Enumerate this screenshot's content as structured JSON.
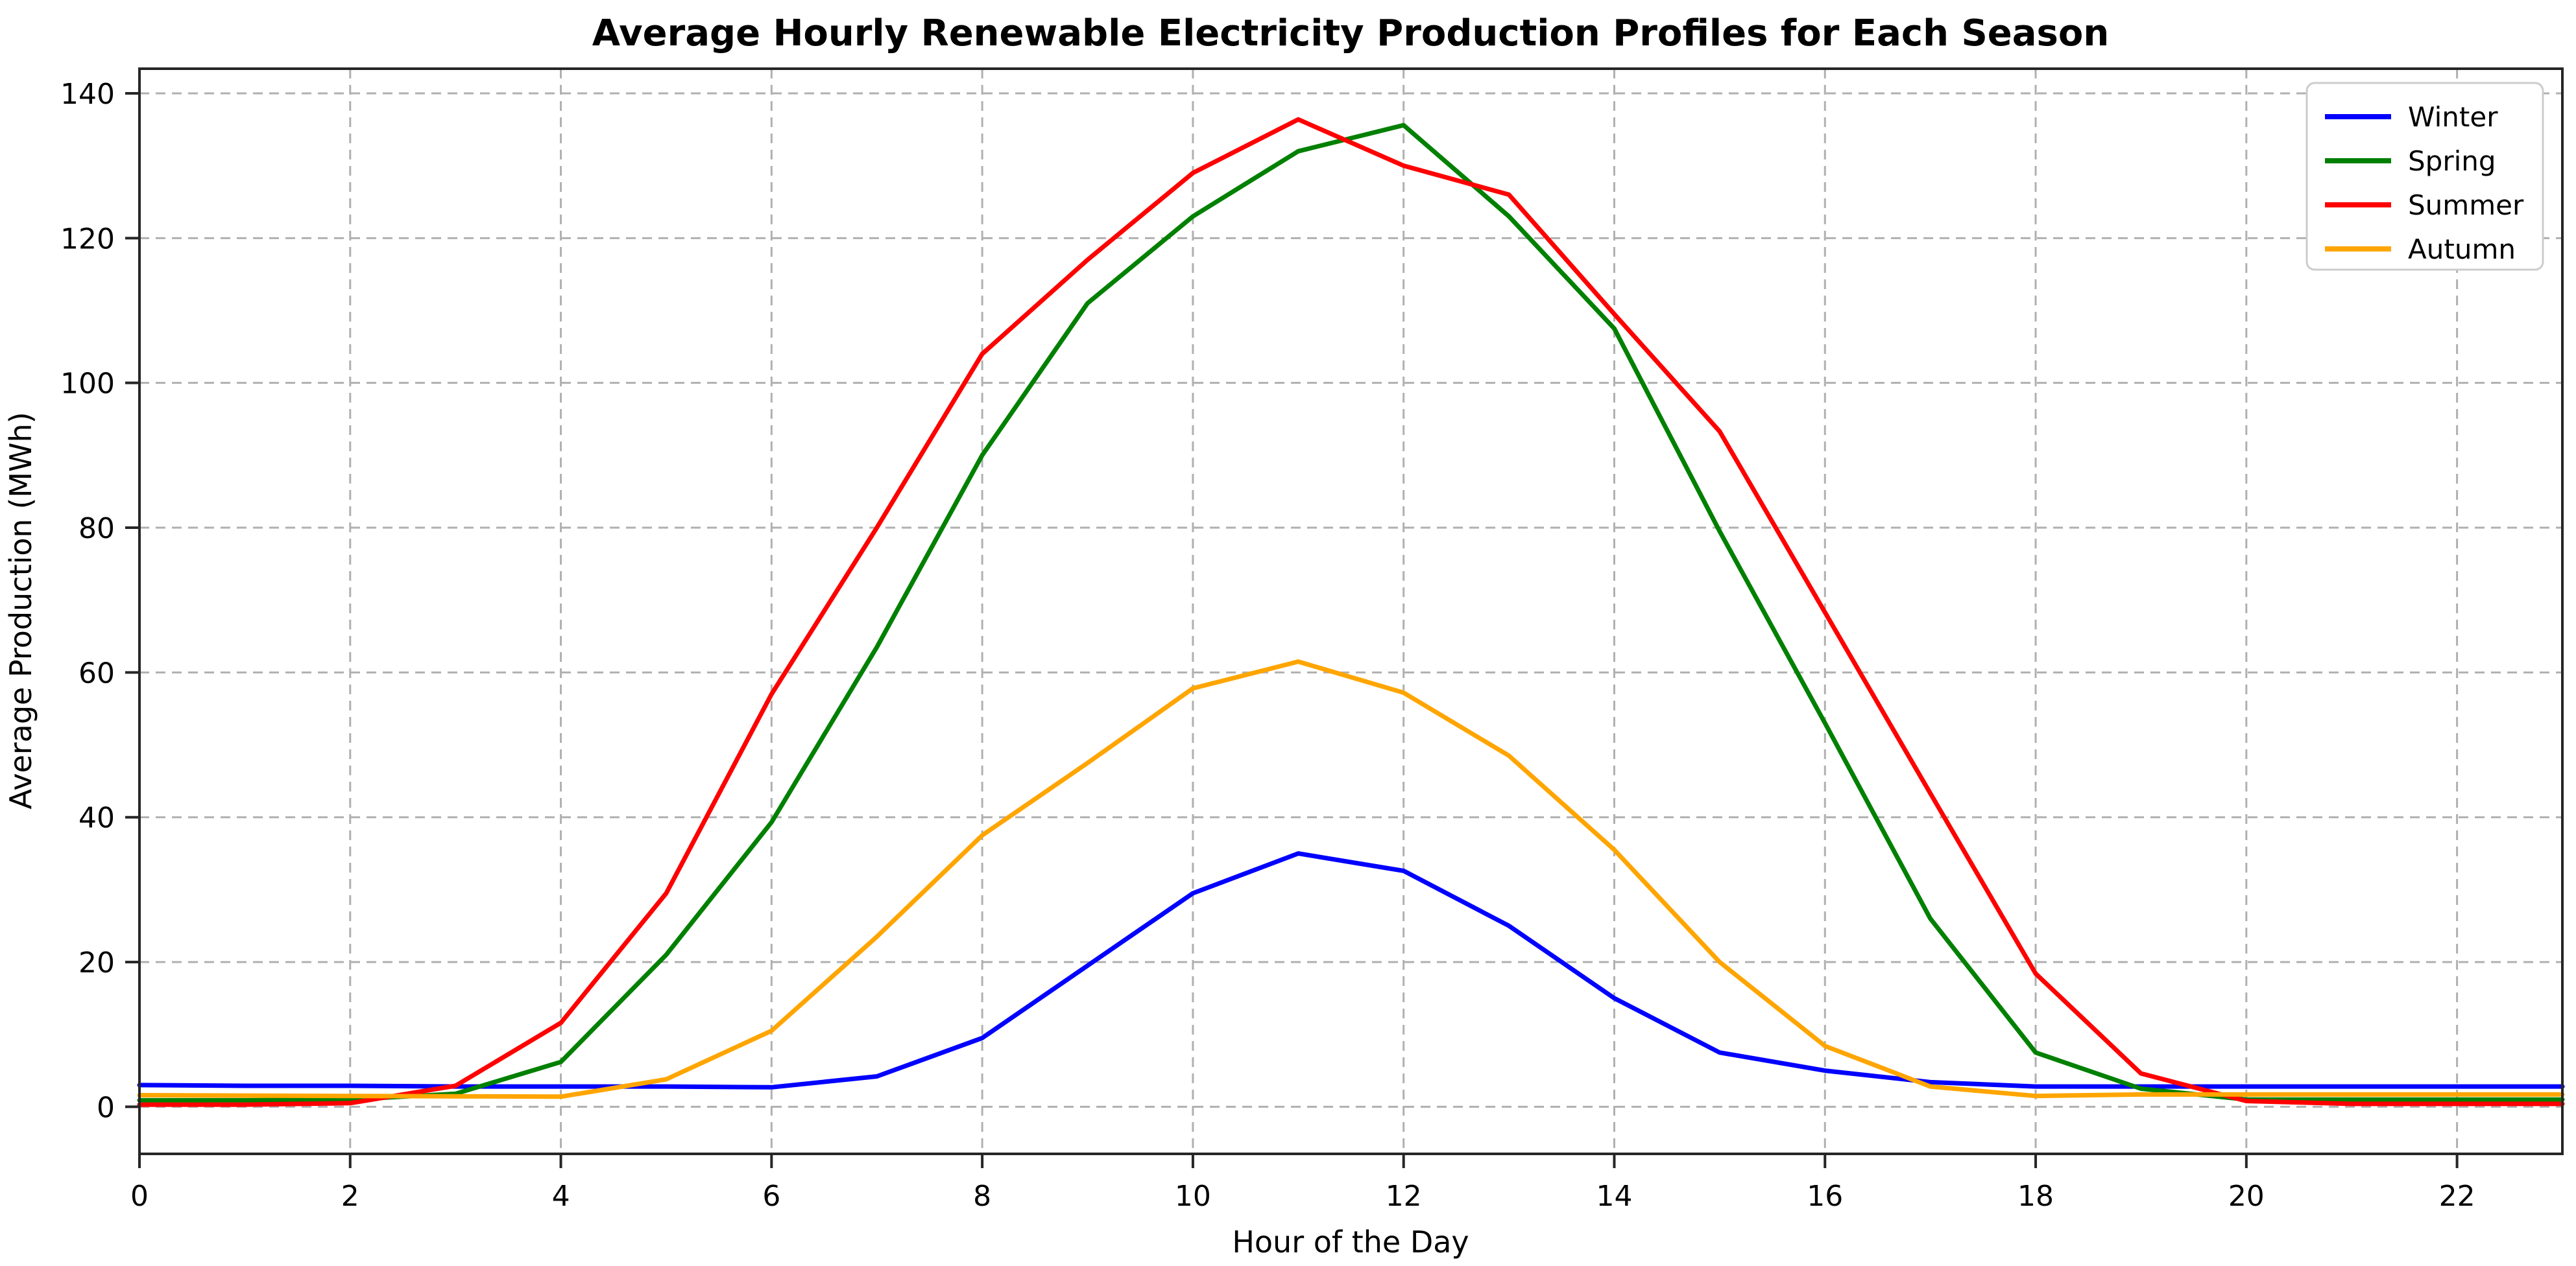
{
  "title": "Average Hourly Renewable Electricity Production Profiles for Each Season",
  "chart_data": {
    "type": "line",
    "title": "Average Hourly Renewable Electricity Production Profiles for Each Season",
    "xlabel": "Hour of the Day",
    "ylabel": "Average Production (MWh)",
    "x": [
      0,
      1,
      2,
      3,
      4,
      5,
      6,
      7,
      8,
      9,
      10,
      11,
      12,
      13,
      14,
      15,
      16,
      17,
      18,
      19,
      20,
      21,
      22,
      23
    ],
    "xlim": [
      0,
      23
    ],
    "ylim": [
      -6.5,
      143.4
    ],
    "xticks": [
      0,
      2,
      4,
      6,
      8,
      10,
      12,
      14,
      16,
      18,
      20,
      22
    ],
    "yticks": [
      0,
      20,
      40,
      60,
      80,
      100,
      120,
      140
    ],
    "grid": true,
    "grid_style": "dashed",
    "legend_position": "upper right",
    "legend": [
      "Winter",
      "Spring",
      "Summer",
      "Autumn"
    ],
    "series": [
      {
        "name": "Winter",
        "color": "#0000ff",
        "values": [
          3.0,
          2.9,
          2.9,
          2.8,
          2.8,
          2.8,
          2.7,
          4.2,
          9.5,
          19.5,
          29.5,
          35.0,
          32.6,
          25.0,
          15.0,
          7.5,
          5.0,
          3.4,
          2.8,
          2.8,
          2.8,
          2.8,
          2.8,
          2.8
        ]
      },
      {
        "name": "Spring",
        "color": "#008000",
        "values": [
          0.9,
          0.9,
          1.0,
          1.8,
          6.2,
          21.0,
          39.3,
          63.5,
          90.0,
          111.0,
          123.0,
          132.0,
          135.6,
          123.0,
          107.5,
          79.5,
          53.0,
          26.0,
          7.5,
          2.5,
          1.0,
          1.0,
          1.0,
          1.0
        ]
      },
      {
        "name": "Summer",
        "color": "#ff0000",
        "values": [
          0.3,
          0.3,
          0.5,
          2.9,
          11.6,
          29.5,
          57.0,
          80.0,
          104.0,
          117.0,
          129.0,
          136.4,
          130.0,
          126.0,
          109.5,
          93.3,
          68.3,
          43.3,
          18.4,
          4.6,
          0.8,
          0.4,
          0.4,
          0.4
        ]
      },
      {
        "name": "Autumn",
        "color": "#ffa500",
        "values": [
          1.6,
          1.55,
          1.5,
          1.45,
          1.4,
          3.8,
          10.5,
          23.5,
          37.5,
          47.5,
          57.8,
          61.5,
          57.2,
          48.5,
          35.5,
          20.0,
          8.4,
          2.8,
          1.5,
          1.7,
          1.7,
          1.7,
          1.7,
          1.7
        ]
      }
    ],
    "colors": {
      "winter": "#0000ff",
      "spring": "#008000",
      "summer": "#ff0000",
      "autumn": "#ffa500"
    },
    "grid_color": "#b0b0b0",
    "spine_color": "#262626"
  }
}
